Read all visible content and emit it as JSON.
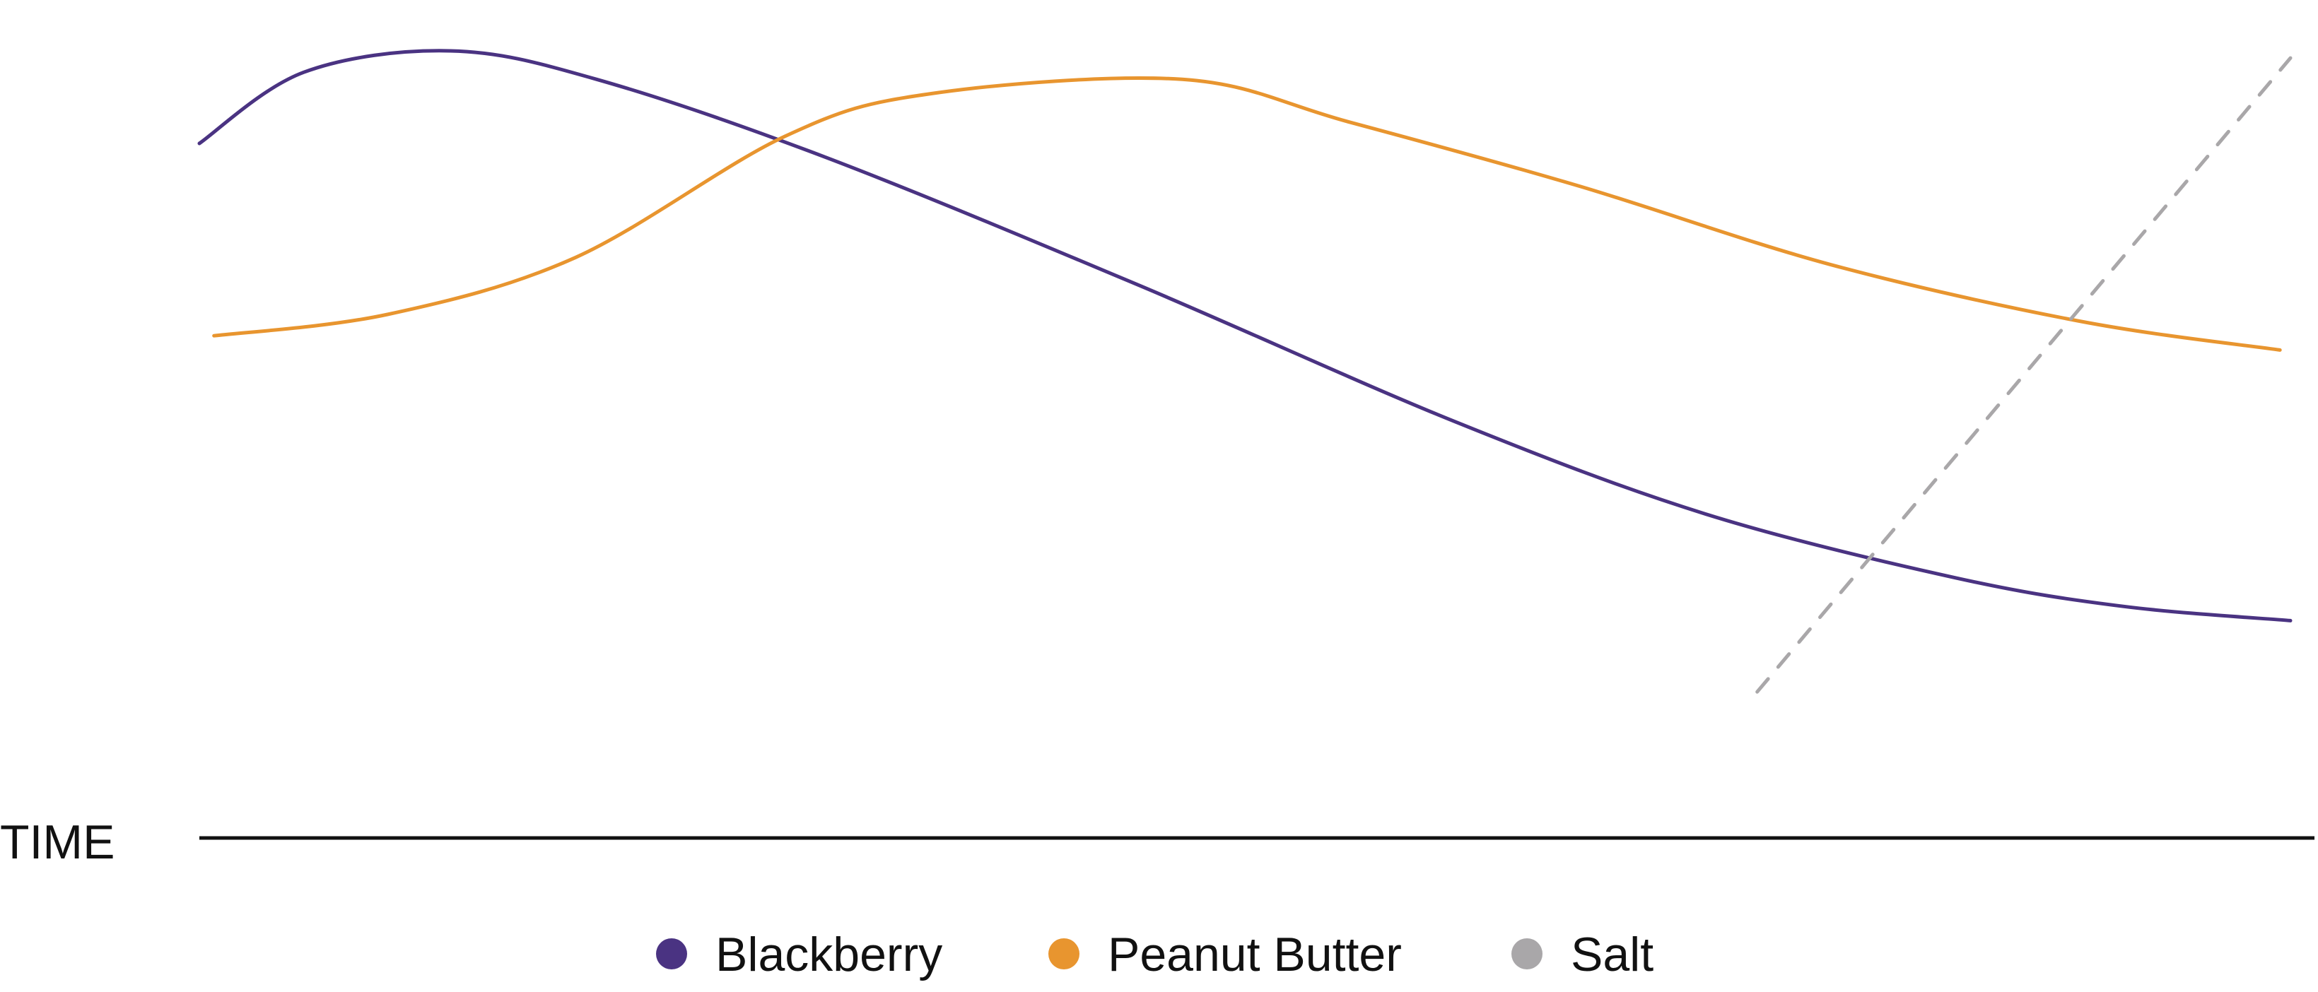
{
  "chart_data": {
    "type": "line",
    "title": "",
    "xlabel": "TIME",
    "ylabel": "",
    "xlim": [
      0,
      100
    ],
    "ylim": [
      0,
      100
    ],
    "grid": false,
    "legend_position": "bottom-center",
    "series": [
      {
        "name": "Blackberry",
        "color": "#4a3382",
        "style": "solid",
        "x": [
          0,
          5,
          12,
          19,
          30,
          45,
          60,
          72,
          84,
          92,
          100
        ],
        "y": [
          87,
          97,
          100,
          96,
          85,
          67,
          48,
          35,
          26,
          22,
          20
        ]
      },
      {
        "name": "Peanut Butter",
        "color": "#e8952f",
        "style": "solid",
        "x": [
          0.7,
          9,
          18,
          28,
          35,
          47,
          55,
          66,
          78,
          90,
          99.5
        ],
        "y": [
          60,
          63,
          71,
          88,
          94,
          96,
          90,
          81,
          70,
          62,
          58
        ]
      },
      {
        "name": "Salt",
        "color": "#a9a7a9",
        "style": "dashed",
        "x": [
          74.5,
          100
        ],
        "y": [
          10,
          99
        ]
      }
    ]
  }
}
